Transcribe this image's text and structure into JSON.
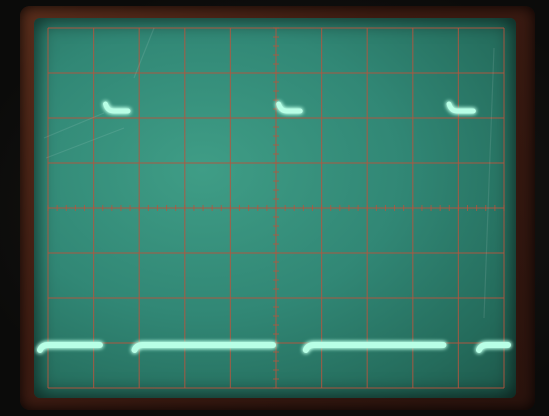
{
  "scene": {
    "description_icon": "oscilloscope-crt-icon",
    "colors": {
      "screen": "#318775",
      "trace": "#b8ffe6",
      "trace_glow": "#5dffc8",
      "graticule": "#b4563f",
      "bezel": "#4a2416"
    }
  },
  "waveform": {
    "shape": "pulse-train",
    "levels": [
      "low",
      "high"
    ],
    "segments": [
      {
        "level": "low",
        "from": 0.0,
        "to": 1.28
      },
      {
        "level": "high",
        "from": 1.4,
        "to": 1.88
      },
      {
        "level": "low",
        "from": 2.02,
        "to": 4.98
      },
      {
        "level": "high",
        "from": 5.1,
        "to": 5.56
      },
      {
        "level": "low",
        "from": 5.68,
        "to": 8.62
      },
      {
        "level": "high",
        "from": 8.74,
        "to": 9.26
      },
      {
        "level": "low",
        "from": 9.38,
        "to": 10.0
      }
    ]
  }
}
